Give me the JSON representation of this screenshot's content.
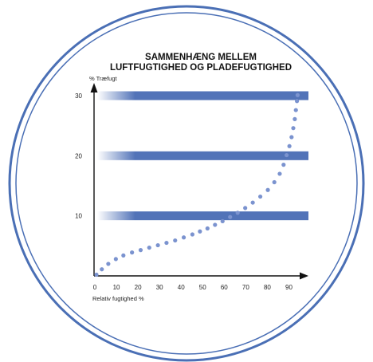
{
  "chart_data": {
    "type": "scatter",
    "title_lines": [
      "SAMMENHÆNG MELLEM",
      "LUFTFUGTIGHED OG PLADEFUGTIGHED"
    ],
    "ylabel": "% Træfugt",
    "xlabel": "Relativ fugtighed %",
    "xlim": [
      0,
      95
    ],
    "ylim": [
      0,
      31
    ],
    "x_ticks": [
      "0",
      "10",
      "20",
      "30",
      "40",
      "50",
      "60",
      "70",
      "80",
      "90"
    ],
    "y_ticks": [
      "10",
      "20",
      "30"
    ],
    "y_tick_values": [
      10,
      20,
      30
    ],
    "bands_at": [
      10,
      20,
      30
    ],
    "series": [
      {
        "x": [
          0,
          2.5,
          5.5,
          9,
          12.5,
          16.5,
          20.5,
          24.5,
          28.5,
          32.5,
          36.5,
          40.5,
          44.5,
          48,
          51.5,
          55,
          58.5,
          62,
          65.5,
          69,
          72.5,
          76,
          79.5,
          82.5,
          85,
          86.8,
          88.2,
          89.5,
          90.5,
          91.3,
          92,
          92.5,
          93,
          93.3
        ],
        "y": [
          0.2,
          1.1,
          2.0,
          2.8,
          3.4,
          3.9,
          4.3,
          4.7,
          5.1,
          5.5,
          5.9,
          6.4,
          6.9,
          7.4,
          7.9,
          8.5,
          9.1,
          9.8,
          10.5,
          11.3,
          12.2,
          13.2,
          14.3,
          15.6,
          17.0,
          18.5,
          20.1,
          21.6,
          23.1,
          24.6,
          26.1,
          27.6,
          29.1,
          30.1
        ]
      }
    ],
    "colors": {
      "band": "#5273b8",
      "dots": "#7b93cf",
      "axis": "#111111",
      "circle": "#4a6fb5"
    }
  }
}
